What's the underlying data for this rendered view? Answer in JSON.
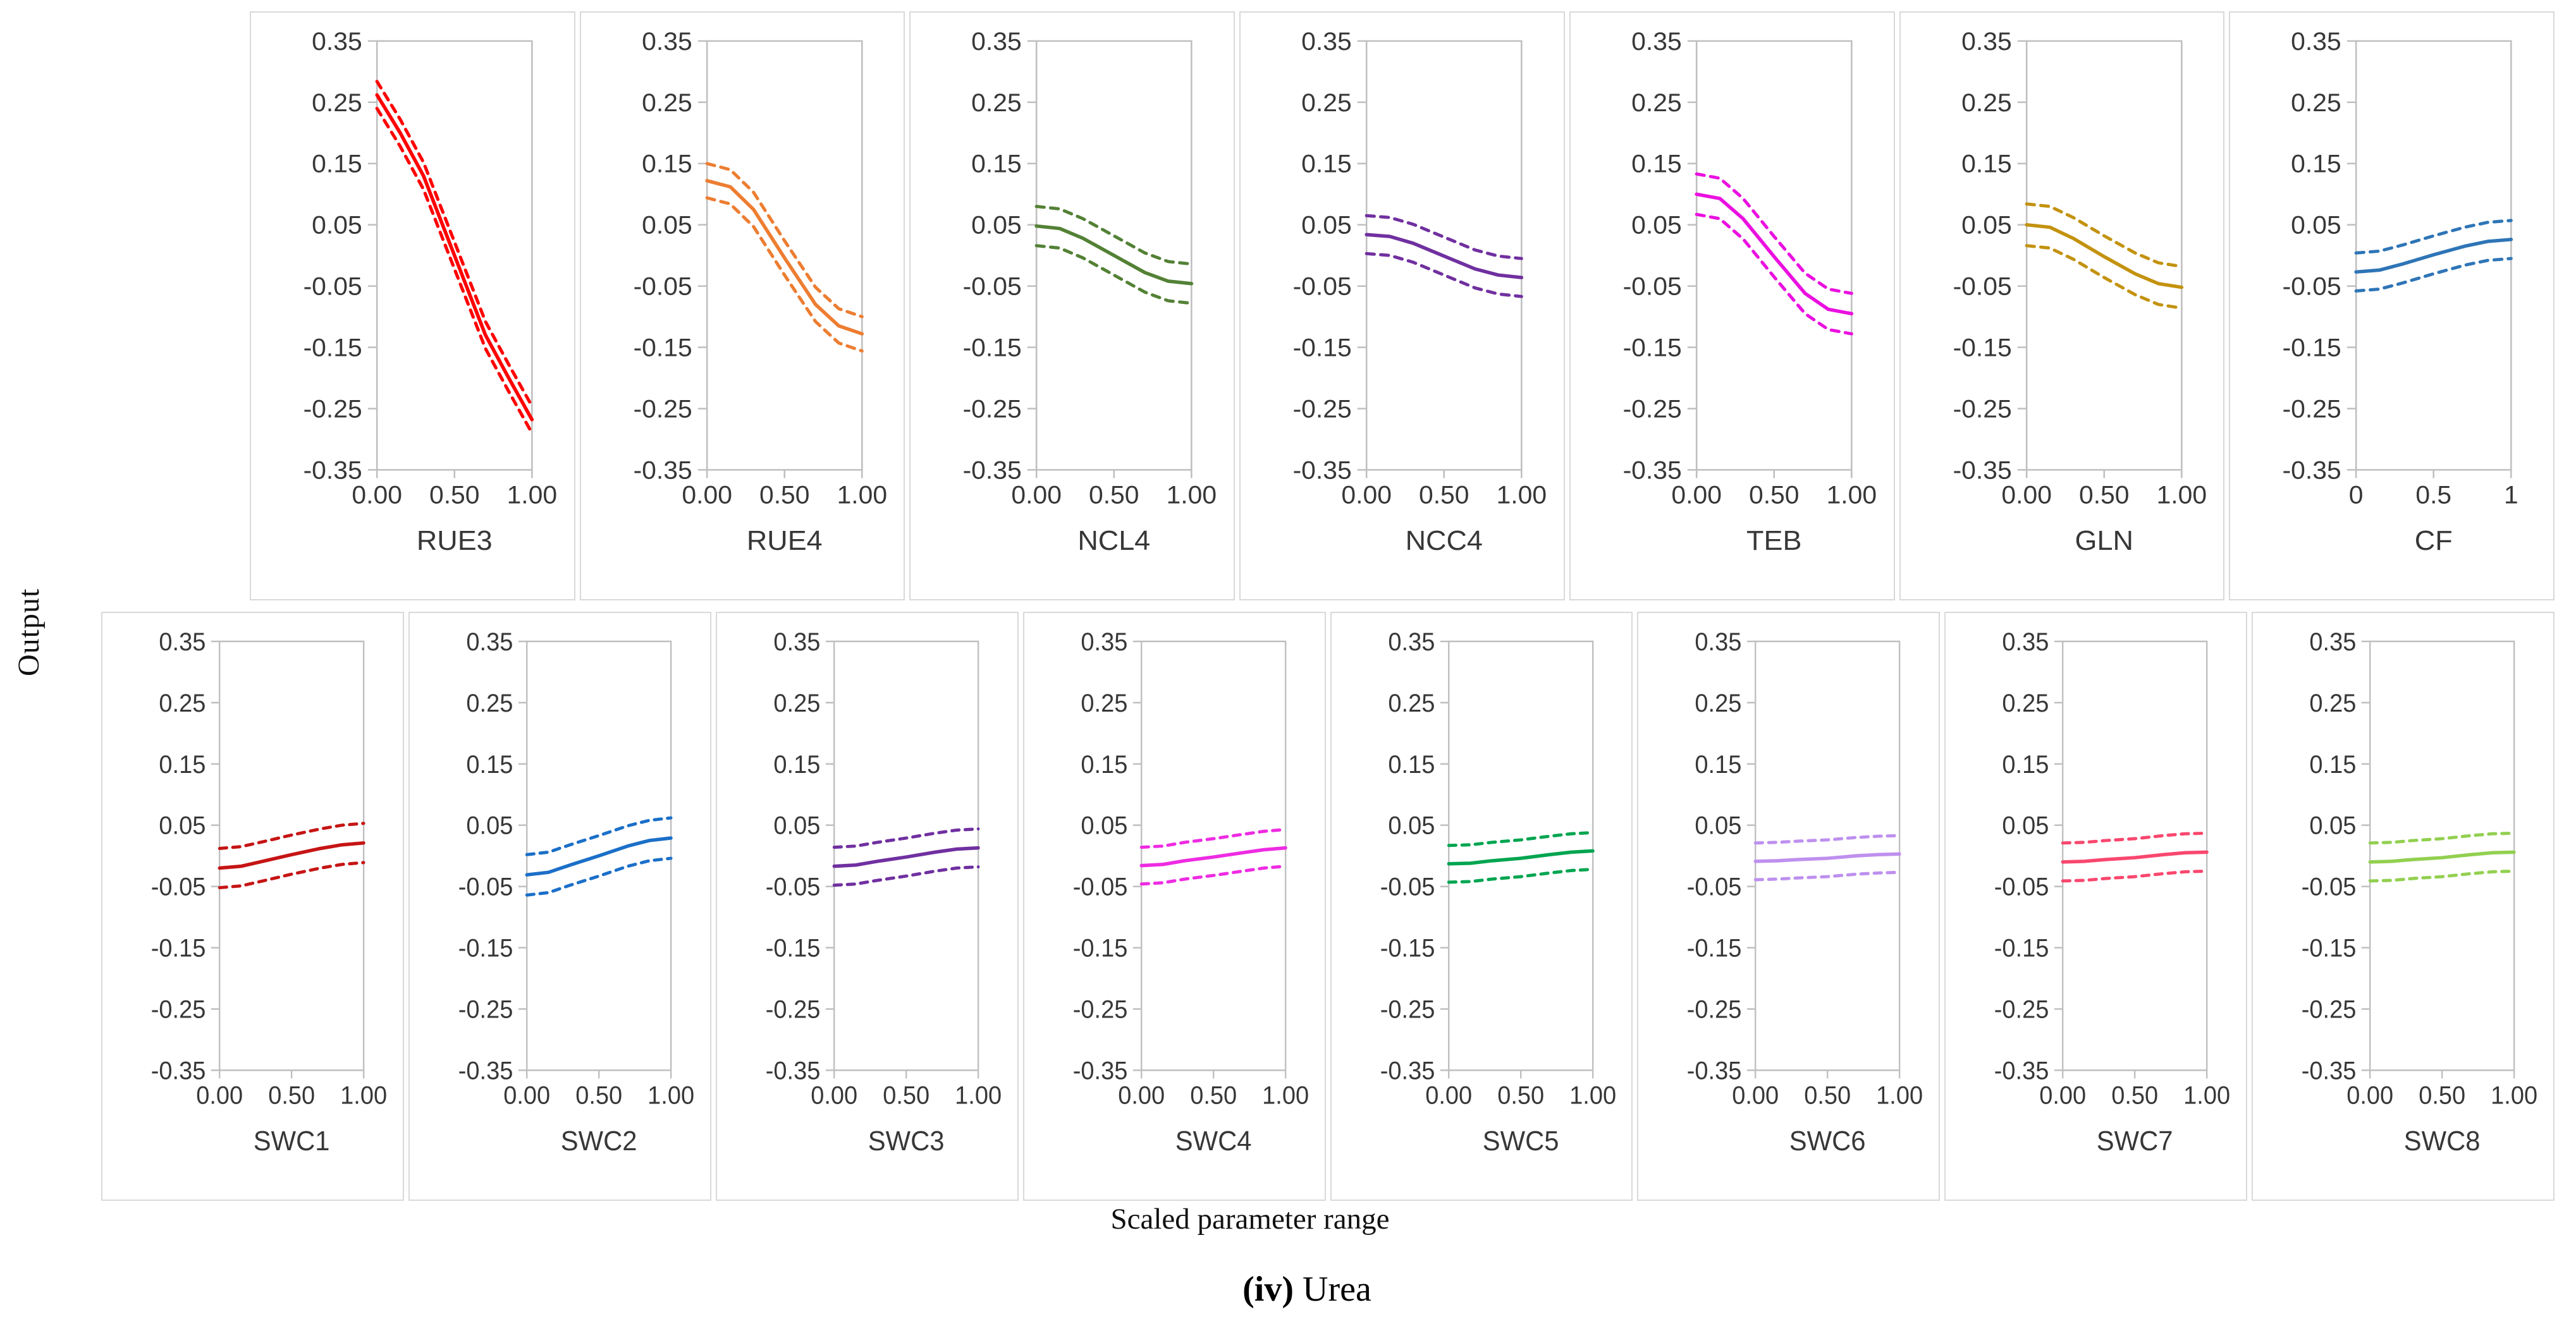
{
  "figure": {
    "y_axis_label": "Output",
    "x_axis_label": "Scaled parameter range",
    "caption_prefix": "(iv)",
    "caption_label": "Urea"
  },
  "chart_data": {
    "type": "line",
    "title": "(iv) Urea",
    "xlabel": "Scaled parameter range",
    "ylabel": "Output",
    "ylim": [
      -0.35,
      0.35
    ],
    "xlim": [
      0,
      1
    ],
    "grid": false,
    "legend": "none",
    "line_styles": {
      "center": "solid",
      "upper_band": "dashed",
      "lower_band": "dashed"
    },
    "y_ticks": [
      "0.35",
      "0.25",
      "0.15",
      "0.05",
      "-0.05",
      "-0.15",
      "-0.25",
      "-0.35"
    ],
    "x": [
      0,
      0.15,
      0.3,
      0.5,
      0.7,
      0.85,
      1
    ],
    "rows": [
      {
        "panels": [
          {
            "name": "RUE3",
            "color": "#FF0000",
            "x_tick_labels": [
              "0.00",
              "0.50",
              "1.00"
            ],
            "solid": [
              0.262,
              0.2,
              0.13,
              0.0,
              -0.13,
              -0.2,
              -0.268
            ],
            "band_offset": 0.022
          },
          {
            "name": "RUE4",
            "color": "#ED7D31",
            "x_tick_labels": [
              "0.00",
              "0.50",
              "1.00"
            ],
            "solid": [
              0.122,
              0.112,
              0.075,
              -0.004,
              -0.08,
              -0.115,
              -0.128
            ],
            "band_offset": 0.028
          },
          {
            "name": "NCL4",
            "color": "#538135",
            "x_tick_labels": [
              "0.00",
              "0.50",
              "1.00"
            ],
            "solid": [
              0.048,
              0.044,
              0.028,
              0.0,
              -0.028,
              -0.042,
              -0.046
            ],
            "band_offset": 0.032
          },
          {
            "name": "NCC4",
            "color": "#7030A0",
            "x_tick_labels": [
              "0.00",
              "0.50",
              "1.00"
            ],
            "solid": [
              0.034,
              0.031,
              0.02,
              -0.001,
              -0.022,
              -0.032,
              -0.036
            ],
            "band_offset": 0.031
          },
          {
            "name": "TEB",
            "color": "#EA10E0",
            "x_tick_labels": [
              "0.00",
              "0.50",
              "1.00"
            ],
            "solid": [
              0.1,
              0.093,
              0.06,
              -0.002,
              -0.062,
              -0.088,
              -0.095
            ],
            "band_offset": 0.033
          },
          {
            "name": "GLN",
            "color": "#C3920E",
            "x_tick_labels": [
              "0.00",
              "0.50",
              "1.00"
            ],
            "solid": [
              0.05,
              0.046,
              0.028,
              -0.002,
              -0.03,
              -0.046,
              -0.052
            ],
            "band_offset": 0.034
          },
          {
            "name": "CF",
            "color": "#2E75B6",
            "x_tick_labels": [
              "0",
              "0.5",
              "1"
            ],
            "solid": [
              -0.027,
              -0.024,
              -0.014,
              0.001,
              0.015,
              0.023,
              0.026
            ],
            "band_offset": 0.031
          }
        ]
      },
      {
        "panels": [
          {
            "name": "SWC1",
            "color": "#C61414",
            "x_tick_labels": [
              "0.00",
              "0.50",
              "1.00"
            ],
            "solid": [
              -0.02,
              -0.017,
              -0.009,
              0.002,
              0.012,
              0.018,
              0.021
            ],
            "band_offset": 0.032
          },
          {
            "name": "SWC2",
            "color": "#1B6FC8",
            "x_tick_labels": [
              "0.00",
              "0.50",
              "1.00"
            ],
            "solid": [
              -0.031,
              -0.027,
              -0.015,
              0.0,
              0.016,
              0.025,
              0.029
            ],
            "band_offset": 0.033
          },
          {
            "name": "SWC3",
            "color": "#7030A0",
            "x_tick_labels": [
              "0.00",
              "0.50",
              "1.00"
            ],
            "solid": [
              -0.017,
              -0.015,
              -0.009,
              -0.002,
              0.006,
              0.011,
              0.013
            ],
            "band_offset": 0.031
          },
          {
            "name": "SWC4",
            "color": "#EE2BE2",
            "x_tick_labels": [
              "0.00",
              "0.50",
              "1.00"
            ],
            "solid": [
              -0.016,
              -0.014,
              -0.008,
              -0.002,
              0.005,
              0.01,
              0.013
            ],
            "band_offset": 0.03
          },
          {
            "name": "SWC5",
            "color": "#00A550",
            "x_tick_labels": [
              "0.00",
              "0.50",
              "1.00"
            ],
            "solid": [
              -0.013,
              -0.012,
              -0.008,
              -0.004,
              0.002,
              0.006,
              0.008
            ],
            "band_offset": 0.03
          },
          {
            "name": "SWC6",
            "color": "#BE90EE",
            "x_tick_labels": [
              "0.00",
              "0.50",
              "1.00"
            ],
            "solid": [
              -0.009,
              -0.008,
              -0.006,
              -0.004,
              0.0,
              0.002,
              0.003
            ],
            "band_offset": 0.03
          },
          {
            "name": "SWC7",
            "color": "#F9476E",
            "x_tick_labels": [
              "0.00",
              "0.50",
              "1.00"
            ],
            "solid": [
              -0.01,
              -0.009,
              -0.006,
              -0.003,
              0.002,
              0.005,
              0.006
            ],
            "band_offset": 0.031
          },
          {
            "name": "SWC8",
            "color": "#92D050",
            "x_tick_labels": [
              "0.00",
              "0.50",
              "1.00"
            ],
            "solid": [
              -0.01,
              -0.009,
              -0.006,
              -0.003,
              0.002,
              0.005,
              0.006
            ],
            "band_offset": 0.031
          }
        ]
      }
    ]
  }
}
